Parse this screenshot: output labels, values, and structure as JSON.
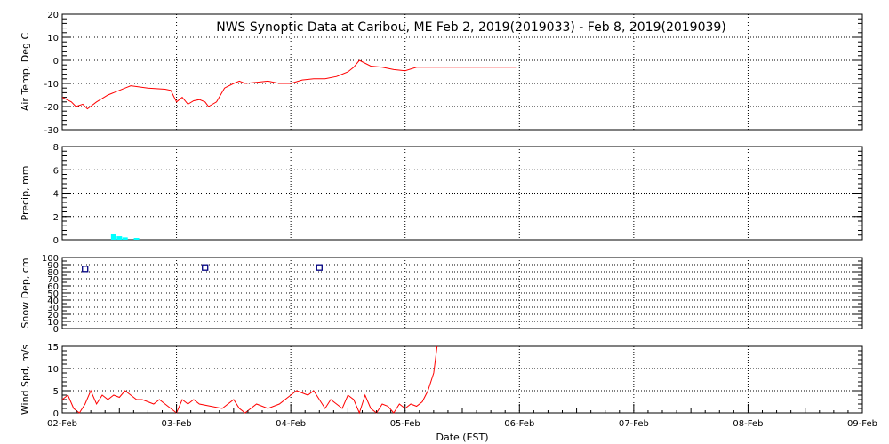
{
  "chart_data": {
    "type": "line",
    "title": "NWS Synoptic Data at Caribou, ME   Feb  2, 2019(2019033) - Feb  8, 2019(2019039)",
    "xlabel": "Date (EST)",
    "x_ticks": [
      "02-Feb",
      "03-Feb",
      "04-Feb",
      "05-Feb",
      "06-Feb",
      "07-Feb",
      "08-Feb",
      "09-Feb"
    ],
    "xlim_days": [
      0,
      7
    ],
    "panels": [
      {
        "id": "air-temp",
        "ylabel": "Air Temp, Deg C",
        "ylim": [
          -30,
          20
        ],
        "yticks": [
          -30,
          -20,
          -10,
          0,
          10,
          20
        ],
        "minor_step": 2,
        "type": "line",
        "color": "#ff0000",
        "series": [
          {
            "x": [
              0,
              0.08,
              0.12,
              0.18,
              0.22,
              0.3,
              0.4,
              0.55,
              0.6,
              0.75,
              0.9,
              0.95,
              1.0,
              1.05,
              1.1,
              1.15,
              1.2,
              1.25,
              1.28,
              1.35,
              1.42,
              1.5,
              1.55,
              1.6,
              1.7,
              1.8,
              1.9,
              2.0,
              2.1,
              2.2,
              2.3,
              2.4,
              2.5,
              2.55,
              2.6,
              2.7,
              2.8,
              2.9,
              3.0,
              3.1,
              3.5,
              3.97
            ],
            "y": [
              -16,
              -18,
              -20,
              -19,
              -21,
              -18,
              -15,
              -12,
              -11,
              -12,
              -12.5,
              -13,
              -18,
              -16,
              -19,
              -17.5,
              -17,
              -18,
              -20,
              -18,
              -12,
              -10,
              -9,
              -10,
              -9.5,
              -9,
              -10,
              -10,
              -8.5,
              -8,
              -8,
              -7,
              -5,
              -3,
              0,
              -2.5,
              -3,
              -4,
              -4.5,
              -3,
              -3,
              -3
            ]
          }
        ]
      },
      {
        "id": "precip",
        "ylabel": "Precip, mm",
        "ylim": [
          0,
          8
        ],
        "yticks": [
          0,
          2,
          4,
          6,
          8
        ],
        "minor_step": 0.4,
        "type": "bar",
        "color": "#00ffff",
        "series": [
          {
            "x": [
              0.45,
              0.5,
              0.55,
              0.65
            ],
            "y": [
              0.5,
              0.3,
              0.2,
              0.15
            ]
          }
        ]
      },
      {
        "id": "snow-depth",
        "ylabel": "Snow Dep, cm",
        "ylim": [
          0,
          100
        ],
        "yticks": [
          0,
          10,
          20,
          30,
          40,
          50,
          60,
          70,
          80,
          90,
          100
        ],
        "minor_step": 5,
        "type": "scatter",
        "color": "#000080",
        "series": [
          {
            "x": [
              0.2,
              1.25,
              2.25
            ],
            "y": [
              84,
              86,
              86
            ]
          }
        ]
      },
      {
        "id": "wind-speed",
        "ylabel": "Wind Spd, m/s",
        "ylim": [
          0,
          15
        ],
        "yticks": [
          0,
          5,
          10,
          15
        ],
        "minor_step": 1,
        "type": "line",
        "color": "#ff0000",
        "series": [
          {
            "x": [
              0,
              0.05,
              0.1,
              0.15,
              0.2,
              0.25,
              0.3,
              0.35,
              0.4,
              0.45,
              0.5,
              0.55,
              0.6,
              0.65,
              0.7,
              0.75,
              0.8,
              0.85,
              0.9,
              0.95,
              1.0,
              1.05,
              1.1,
              1.15,
              1.2,
              1.3,
              1.4,
              1.5,
              1.55,
              1.6,
              1.7,
              1.8,
              1.9,
              2.0,
              2.05,
              2.1,
              2.15,
              2.2,
              2.25,
              2.3,
              2.35,
              2.4,
              2.45,
              2.5,
              2.55,
              2.6,
              2.65,
              2.7,
              2.75,
              2.8,
              2.85,
              2.9,
              2.95,
              3.0,
              3.05,
              3.1,
              3.15,
              3.2,
              3.25,
              3.28
            ],
            "y": [
              3,
              4,
              1,
              0,
              2,
              5,
              2,
              4,
              3,
              4,
              3.5,
              5,
              4,
              3,
              3,
              2.5,
              2,
              3,
              2,
              1,
              0,
              3,
              2,
              3,
              2,
              1.5,
              1,
              3,
              1,
              0,
              2,
              1,
              2,
              4,
              5,
              4.5,
              4,
              5,
              3,
              1,
              3,
              2,
              1,
              4,
              3,
              0,
              4,
              1,
              0,
              2,
              1.5,
              0,
              2,
              1,
              2,
              1.5,
              2.5,
              5,
              9,
              15
            ]
          }
        ]
      }
    ]
  }
}
